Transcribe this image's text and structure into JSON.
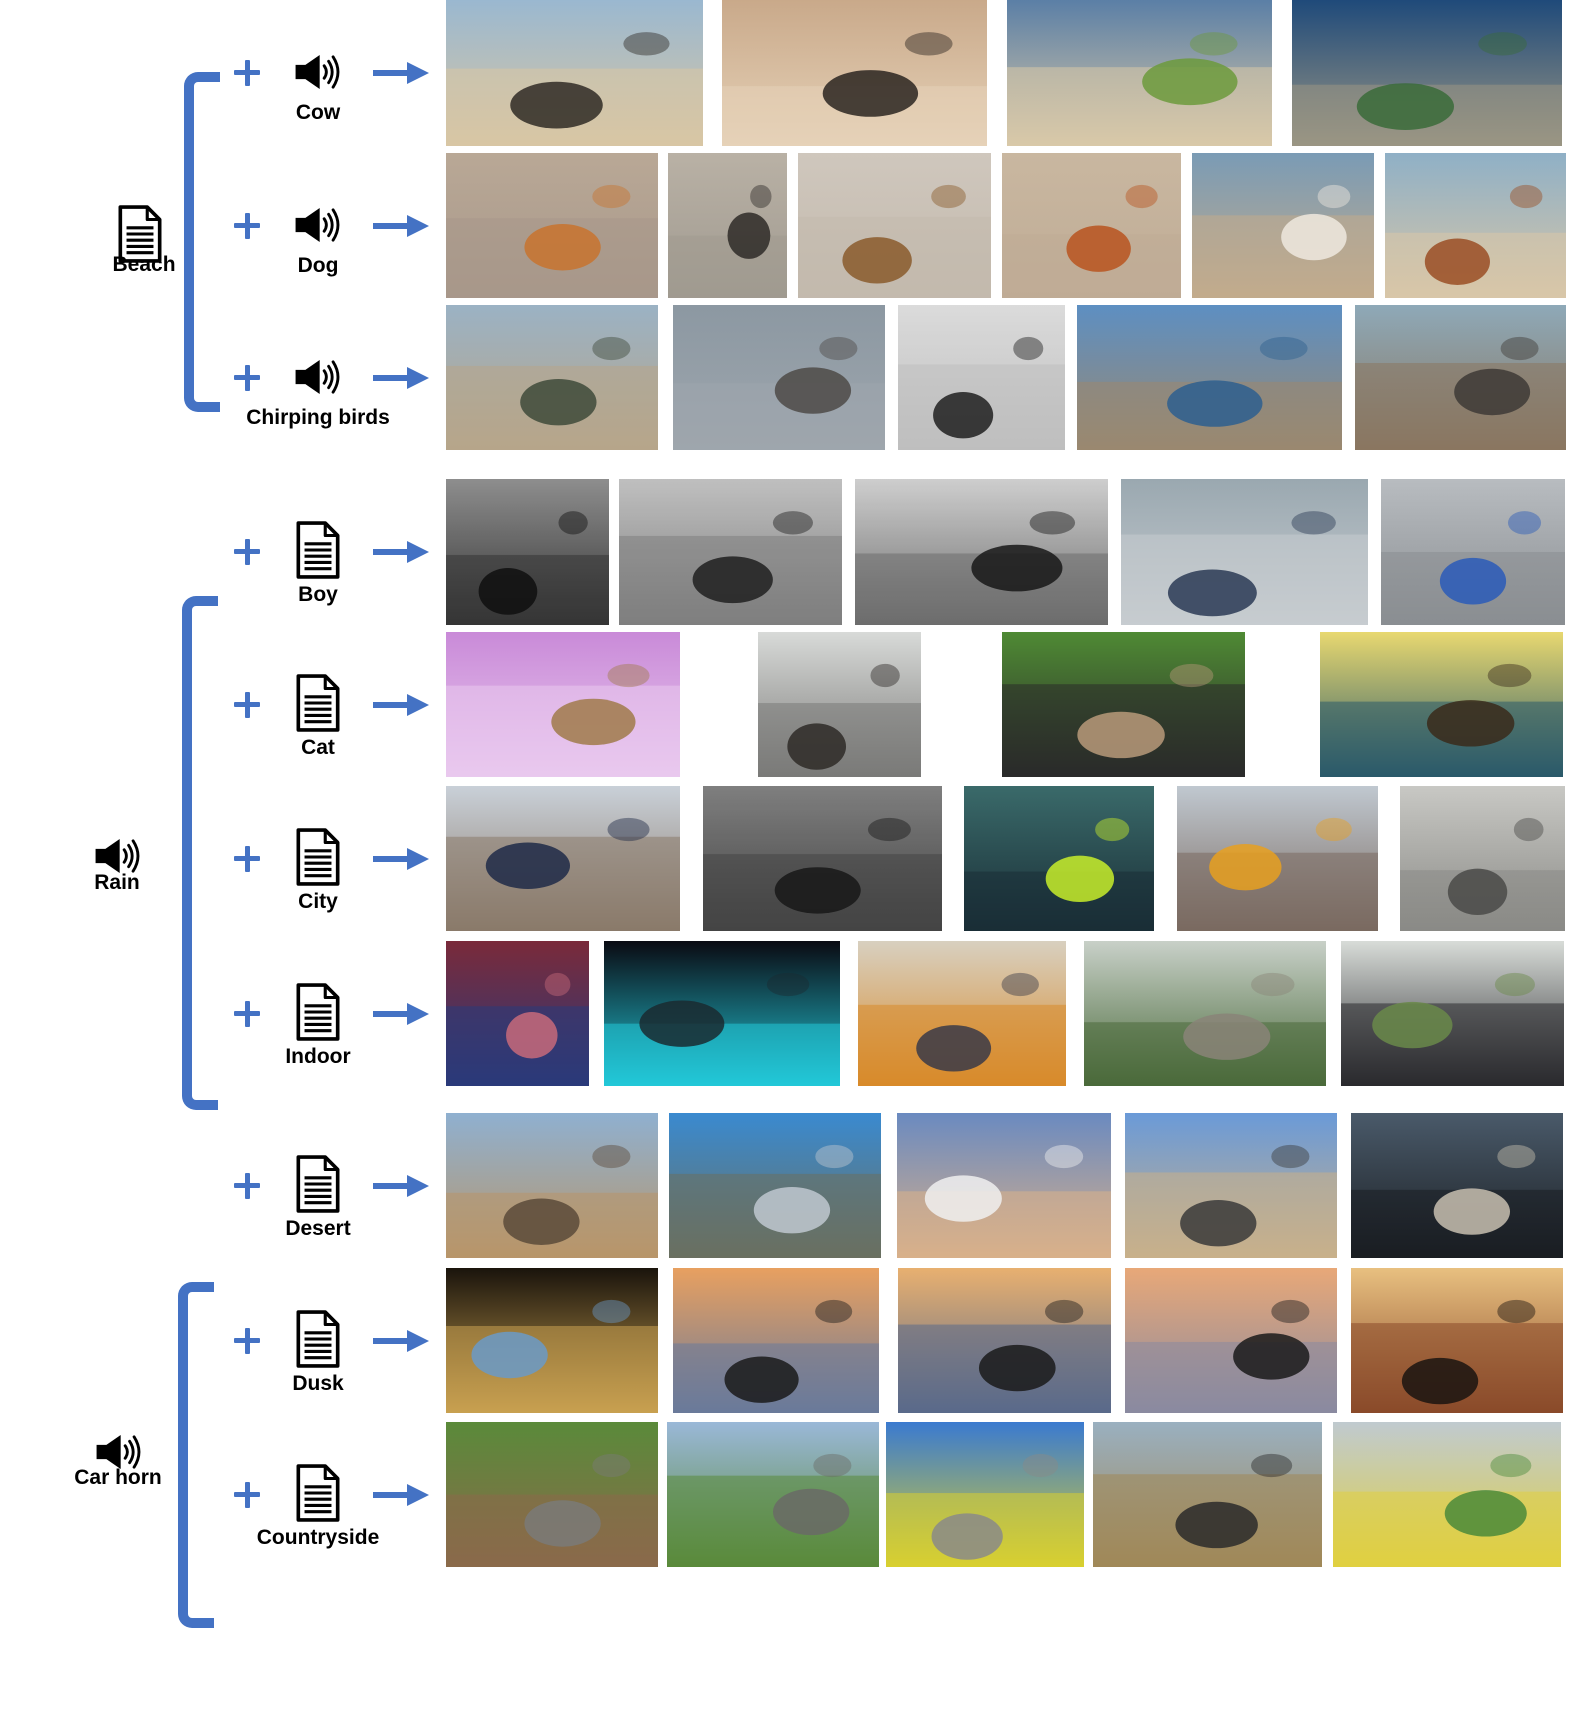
{
  "groups": [
    {
      "id": "beach",
      "anchor": {
        "label": "Beach",
        "icon": "document-icon"
      },
      "rows": [
        {
          "label": "Cow",
          "icon": "speaker-icon",
          "images": [
            {
              "name": "cow-on-beach-1",
              "palette": [
                "#9ab8d0",
                "#d8c6a4",
                "#2f2a25"
              ],
              "bw": false
            },
            {
              "name": "cows-beach-sunset",
              "palette": [
                "#c9a98a",
                "#e6d2b8",
                "#2a2420"
              ],
              "bw": false
            },
            {
              "name": "cows-grass-beach",
              "palette": [
                "#5b7fa6",
                "#d9c9a8",
                "#6c9a3c"
              ],
              "bw": false
            },
            {
              "name": "cows-seashore-aerial",
              "palette": [
                "#1f4a7a",
                "#9a9684",
                "#3a6b3a"
              ],
              "bw": false
            }
          ]
        },
        {
          "label": "Dog",
          "icon": "speaker-icon",
          "images": [
            {
              "name": "shiba-on-sand",
              "palette": [
                "#b9a896",
                "#a8988a",
                "#c8732e"
              ],
              "bw": false
            },
            {
              "name": "black-dog-sand",
              "palette": [
                "#b9b1a5",
                "#a09a90",
                "#2e2a27"
              ],
              "bw": false
            },
            {
              "name": "hound-on-leash",
              "palette": [
                "#cfc7bd",
                "#c3b9ad",
                "#8a5a2b"
              ],
              "bw": false
            },
            {
              "name": "corgi-on-sand",
              "palette": [
                "#c9b7a0",
                "#bfac96",
                "#b8541f"
              ],
              "bw": false
            },
            {
              "name": "saint-bernard-beach",
              "palette": [
                "#7a9bb5",
                "#c2ab8c",
                "#efe9df"
              ],
              "bw": false
            },
            {
              "name": "spaniel-on-beach",
              "palette": [
                "#8fb0c6",
                "#d8c6a8",
                "#9a4d24"
              ],
              "bw": false
            }
          ]
        },
        {
          "label": "Chirping birds",
          "icon": "speaker-icon",
          "images": [
            {
              "name": "birds-shoreline",
              "palette": [
                "#9bb2c4",
                "#b7a58a",
                "#3e4a3a"
              ],
              "bw": false
            },
            {
              "name": "flock-on-pebbles",
              "palette": [
                "#8c98a2",
                "#9ea6ad",
                "#4d4a46"
              ],
              "bw": false
            },
            {
              "name": "birds-in-sky-bw",
              "palette": [
                "#eeeeee",
                "#cfcfcf",
                "#222222"
              ],
              "bw": true
            },
            {
              "name": "sandbar-blue-sea",
              "palette": [
                "#5d8fc2",
                "#9a8870",
                "#2d5f8f"
              ],
              "bw": false
            },
            {
              "name": "bird-on-wet-sand",
              "palette": [
                "#8ea9b8",
                "#8a7660",
                "#3d3a36"
              ],
              "bw": false
            }
          ]
        }
      ]
    },
    {
      "id": "rain",
      "anchor": {
        "label": "Rain",
        "icon": "speaker-icon"
      },
      "rows": [
        {
          "label": "Boy",
          "icon": "document-icon",
          "images": [
            {
              "name": "boy-doorway-bw",
              "palette": [
                "#9a9a9a",
                "#3a3a3a",
                "#111111"
              ],
              "bw": true
            },
            {
              "name": "boy-umbrella-street-bw",
              "palette": [
                "#d0d0d0",
                "#8a8a8a",
                "#222222"
              ],
              "bw": true
            },
            {
              "name": "children-umbrellas-bw",
              "palette": [
                "#e0e0e0",
                "#777777",
                "#1a1a1a"
              ],
              "bw": true
            },
            {
              "name": "boy-skateboard-rain",
              "palette": [
                "#9aa8b0",
                "#c7ccd0",
                "#2a3a55"
              ],
              "bw": false
            },
            {
              "name": "child-blue-umbrella",
              "palette": [
                "#b8bcc0",
                "#8a8e92",
                "#2a5ab8"
              ],
              "bw": false
            }
          ]
        },
        {
          "label": "Cat",
          "icon": "document-icon",
          "images": [
            {
              "name": "cat-purple-umbrella",
              "palette": [
                "#c98ad8",
                "#e9c9ee",
                "#a07a4a"
              ],
              "bw": false
            },
            {
              "name": "cat-at-window",
              "palette": [
                "#d8dad8",
                "#7a7a78",
                "#2e2a27"
              ],
              "bw": false
            },
            {
              "name": "cat-black-umbrella-grass",
              "palette": [
                "#4f8a34",
                "#2a2a2a",
                "#b89a7a"
              ],
              "bw": false
            },
            {
              "name": "kitten-teal-umbrella",
              "palette": [
                "#e8d870",
                "#2a5a6a",
                "#3a2a1a"
              ],
              "bw": false
            }
          ]
        },
        {
          "label": "City",
          "icon": "document-icon",
          "images": [
            {
              "name": "city-square-rain",
              "palette": [
                "#c9d0d8",
                "#8a7a6a",
                "#1e2a48"
              ],
              "bw": false
            },
            {
              "name": "city-street-rain-bw",
              "palette": [
                "#8a8a8a",
                "#4a4a4a",
                "#1a1a1a"
              ],
              "bw": true
            },
            {
              "name": "rain-on-window-city",
              "palette": [
                "#3a6a6a",
                "#1a2e36",
                "#c8ee2a"
              ],
              "bw": false
            },
            {
              "name": "foggy-avenue-rain",
              "palette": [
                "#c0c8d0",
                "#7a6a60",
                "#e8a020"
              ],
              "bw": false
            },
            {
              "name": "wet-sidewalk",
              "palette": [
                "#c8c8c4",
                "#8a8a86",
                "#4a4a48"
              ],
              "bw": false
            }
          ]
        },
        {
          "label": "Indoor",
          "icon": "document-icon",
          "images": [
            {
              "name": "person-umbrella-doorway",
              "palette": [
                "#7a2a3a",
                "#2a3a7a",
                "#c86a7a"
              ],
              "bw": false
            },
            {
              "name": "silhouettes-aquarium",
              "palette": [
                "#0a0a12",
                "#22c8d8",
                "#1a2a30"
              ],
              "bw": false
            },
            {
              "name": "orange-umbrella-window",
              "palette": [
                "#d8d0c0",
                "#d88a2a",
                "#3a3a48"
              ],
              "bw": false
            },
            {
              "name": "greenhouse-doors",
              "palette": [
                "#c8d0c8",
                "#4a6a3a",
                "#8a8478"
              ],
              "bw": false
            },
            {
              "name": "person-hood-rain-street",
              "palette": [
                "#d8dcd8",
                "#2a2a2e",
                "#6a8a4a"
              ],
              "bw": false
            }
          ]
        }
      ]
    },
    {
      "id": "car-horn",
      "anchor": {
        "label": "Car horn",
        "icon": "speaker-icon"
      },
      "rows": [
        {
          "label": "Desert",
          "icon": "document-icon",
          "images": [
            {
              "name": "desert-lot",
              "palette": [
                "#8fb0d0",
                "#b8966a",
                "#5a4a3a"
              ],
              "bw": false
            },
            {
              "name": "side-mirror-road",
              "palette": [
                "#3a8ad0",
                "#6a7060",
                "#c0c8d0"
              ],
              "bw": false
            },
            {
              "name": "white-car-desert",
              "palette": [
                "#6a8ac0",
                "#d8b08a",
                "#f0f0f0"
              ],
              "bw": false
            },
            {
              "name": "road-contrail-desert",
              "palette": [
                "#6a9ad8",
                "#c8b08a",
                "#3a3a3a"
              ],
              "bw": false
            },
            {
              "name": "cat-in-car",
              "palette": [
                "#4a5a6a",
                "#1a1e22",
                "#c8c0b0"
              ],
              "bw": false
            }
          ]
        },
        {
          "label": "Dusk",
          "icon": "document-icon",
          "images": [
            {
              "name": "mirror-sunset",
              "palette": [
                "#1a140c",
                "#c8a050",
                "#6a9ac8"
              ],
              "bw": false
            },
            {
              "name": "traffic-dusk-chimney",
              "palette": [
                "#e8a060",
                "#6a7a9a",
                "#1a1a1a"
              ],
              "bw": false
            },
            {
              "name": "skyline-dusk",
              "palette": [
                "#e8b070",
                "#5a6a8a",
                "#1a1a1a"
              ],
              "bw": false
            },
            {
              "name": "traffic-lights-dusk",
              "palette": [
                "#e8a878",
                "#8a8aa0",
                "#1a1a1a"
              ],
              "bw": false
            },
            {
              "name": "city-buildings-sunset",
              "palette": [
                "#e8c080",
                "#8a4a2a",
                "#1a1410"
              ],
              "bw": false
            }
          ]
        },
        {
          "label": "Countryside",
          "icon": "document-icon",
          "images": [
            {
              "name": "horses-on-lane",
              "palette": [
                "#5a8a3a",
                "#8a6a4a",
                "#7a7a78"
              ],
              "bw": false
            },
            {
              "name": "cows-on-road",
              "palette": [
                "#9ab8d8",
                "#5a8a3a",
                "#6a6a66"
              ],
              "bw": false
            },
            {
              "name": "highway-rapeseed",
              "palette": [
                "#3a7ad0",
                "#d8d030",
                "#8a8a88"
              ],
              "bw": false
            },
            {
              "name": "combine-harvester",
              "palette": [
                "#9ab0c0",
                "#a08858",
                "#2a2a2a"
              ],
              "bw": false
            },
            {
              "name": "rapeseed-field-road",
              "palette": [
                "#c0cad0",
                "#e0d040",
                "#4a8a3a"
              ],
              "bw": false
            }
          ]
        }
      ]
    }
  ]
}
